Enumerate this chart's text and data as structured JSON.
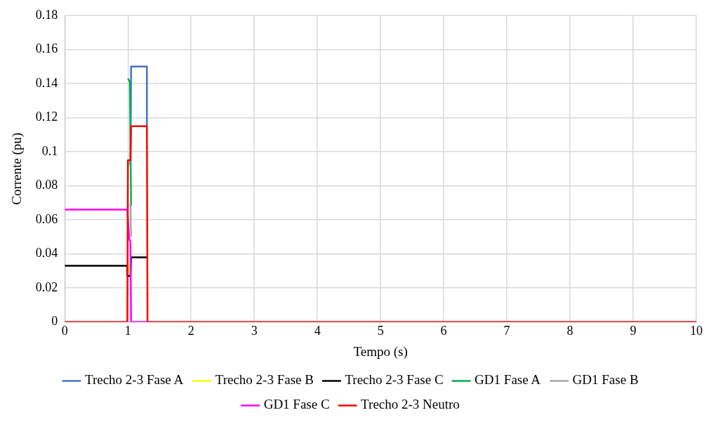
{
  "chart_data": {
    "type": "line",
    "xlabel": "Tempo (s)",
    "ylabel": "Corrente (pu)",
    "xlim": [
      0,
      10
    ],
    "xticks": [
      0,
      1,
      2,
      3,
      4,
      5,
      6,
      7,
      8,
      9,
      10
    ],
    "ylim": [
      0,
      0.18
    ],
    "yticks": [
      0,
      0.02,
      0.04,
      0.06,
      0.08,
      0.1,
      0.12,
      0.14,
      0.16,
      0.18
    ],
    "grid": true,
    "legend": "bottom",
    "marker": "none",
    "series": [
      {
        "name": "Trecho 2-3 Fase A",
        "color": "#4472c4",
        "x": [
          1.02,
          1.04,
          1.05,
          1.3,
          1.3
        ],
        "values": [
          0.093,
          0.093,
          0.15,
          0.15,
          0.115
        ]
      },
      {
        "name": "Trecho 2-3 Fase B",
        "color": "#ffff00",
        "x": [
          1.025,
          1.025
        ],
        "values": [
          0.034,
          0.029
        ]
      },
      {
        "name": "Trecho 2-3 Fase C",
        "color": "#000000",
        "x": [
          0,
          0.99,
          0.99,
          1.04,
          1.05,
          1.3
        ],
        "values": [
          0.033,
          0.033,
          0.027,
          0.027,
          0.038,
          0.038
        ]
      },
      {
        "name": "GD1 Fase A",
        "color": "#00b050",
        "x": [
          1.0,
          1.03,
          1.05
        ],
        "values": [
          0.143,
          0.141,
          0.068
        ]
      },
      {
        "name": "GD1 Fase B",
        "color": "#a5a5a5",
        "x": [
          1.02,
          1.04,
          1.05
        ],
        "values": [
          0.069,
          0.069,
          0.05
        ]
      },
      {
        "name": "GD1 Fase C",
        "color": "#ff00ff",
        "x": [
          0,
          0.99,
          1.02,
          1.04,
          1.05,
          1.3
        ],
        "values": [
          0.066,
          0.066,
          0.049,
          0.047,
          0,
          0
        ]
      },
      {
        "name": "Trecho 2-3 Neutro",
        "color": "#ff0000",
        "x": [
          0,
          0.99,
          1.0,
          1.04,
          1.05,
          1.3,
          1.31,
          10
        ],
        "values": [
          0,
          0,
          0.095,
          0.095,
          0.115,
          0.115,
          0,
          0
        ]
      }
    ]
  }
}
